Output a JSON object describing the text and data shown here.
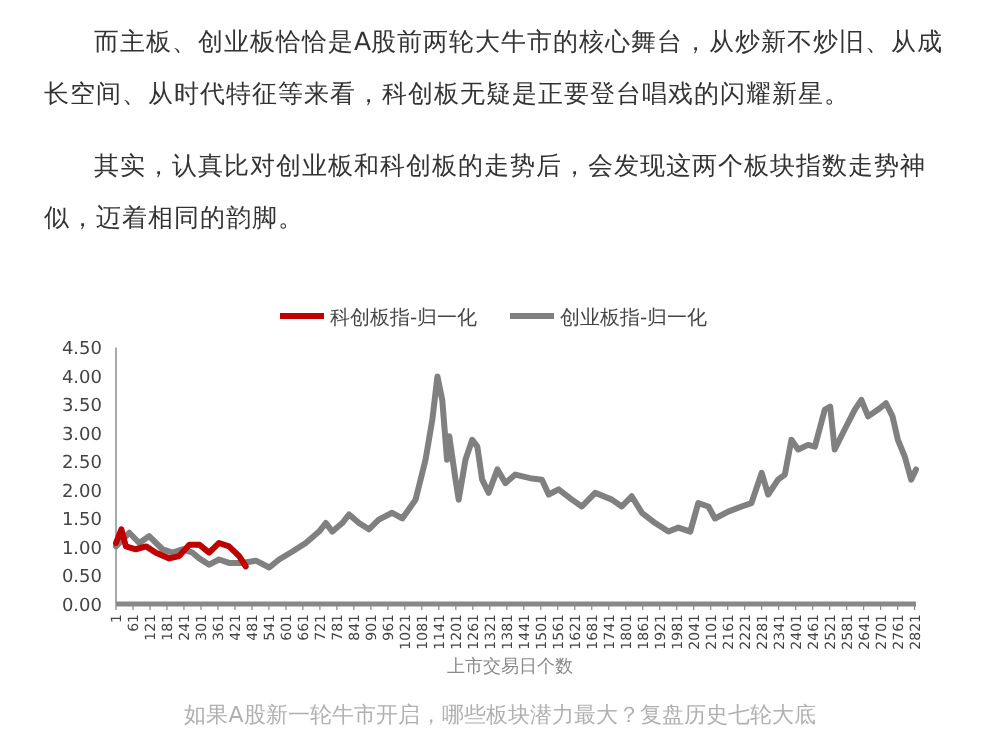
{
  "chart_data": {
    "type": "line",
    "annotations": [
      "而主板、创业板恰恰是A股前两轮大牛市的核心舞台，从炒新不炒旧、从成长空间、从时代特征等来看，科创板无疑是正要登台唱戏的闪耀新星。",
      "其实，认真比对创业板和科创板的走势后，会发现这两个板块指数走势神似，迈着相同的韵脚。",
      "如果A股新一轮牛市开启，哪些板块潜力最大？复盘历史七轮大底"
    ],
    "xlabel": "上市交易日个数",
    "legend": "top",
    "xlim": [
      1,
      2826
    ],
    "xticks": [
      1,
      61,
      121,
      181,
      241,
      301,
      361,
      421,
      481,
      541,
      601,
      661,
      721,
      781,
      841,
      901,
      961,
      1021,
      1081,
      1141,
      1201,
      1261,
      1321,
      1381,
      1441,
      1501,
      1561,
      1621,
      1681,
      1741,
      1801,
      1861,
      1921,
      1981,
      2041,
      2101,
      2161,
      2221,
      2281,
      2341,
      2401,
      2461,
      2521,
      2581,
      2641,
      2701,
      2761,
      2821
    ],
    "ylim": [
      0,
      4.5
    ],
    "yticks": [
      {
        "value": 0,
        "label": "0.00"
      },
      {
        "value": 0.5,
        "label": "0.50"
      },
      {
        "value": 1,
        "label": "1.00"
      },
      {
        "value": 1.5,
        "label": "1.50"
      },
      {
        "value": 2,
        "label": "2.00"
      },
      {
        "value": 2.5,
        "label": "2.50"
      },
      {
        "value": 3,
        "label": "3.00"
      },
      {
        "value": 3.5,
        "label": "3.50"
      },
      {
        "value": 4,
        "label": "4.00"
      },
      {
        "value": 4.5,
        "label": "4.50"
      }
    ],
    "series": [
      {
        "name": "科创板指-归一化",
        "color": "#c00000",
        "x": [
          1,
          20,
          36,
          71,
          107,
          142,
          189,
          224,
          260,
          295,
          330,
          365,
          400,
          436,
          459
        ],
        "values": [
          1.07,
          1.31,
          1.01,
          0.96,
          1.01,
          0.9,
          0.8,
          0.84,
          1.04,
          1.04,
          0.9,
          1.07,
          1.01,
          0.84,
          0.66
        ]
      },
      {
        "name": "创业板指-归一化",
        "color": "#808080",
        "x": [
          1,
          48,
          83,
          118,
          165,
          201,
          236,
          271,
          295,
          330,
          365,
          400,
          447,
          495,
          542,
          577,
          624,
          671,
          718,
          742,
          765,
          800,
          824,
          859,
          894,
          929,
          976,
          1012,
          1035,
          1059,
          1094,
          1118,
          1136,
          1153,
          1170,
          1178,
          1200,
          1211,
          1235,
          1259,
          1277,
          1294,
          1317,
          1348,
          1376,
          1411,
          1470,
          1505,
          1529,
          1564,
          1611,
          1646,
          1693,
          1752,
          1787,
          1822,
          1858,
          1905,
          1952,
          1987,
          2029,
          2057,
          2093,
          2116,
          2163,
          2210,
          2245,
          2281,
          2304,
          2339,
          2363,
          2386,
          2410,
          2445,
          2469,
          2504,
          2523,
          2539,
          2574,
          2610,
          2633,
          2657,
          2692,
          2720,
          2743,
          2762,
          2786,
          2809,
          2826
        ],
        "values": [
          1.01,
          1.25,
          1.07,
          1.19,
          0.96,
          0.9,
          0.96,
          0.9,
          0.8,
          0.69,
          0.78,
          0.72,
          0.72,
          0.76,
          0.64,
          0.78,
          0.92,
          1.07,
          1.27,
          1.42,
          1.27,
          1.42,
          1.57,
          1.42,
          1.31,
          1.48,
          1.6,
          1.5,
          1.66,
          1.83,
          2.53,
          3.23,
          3.99,
          3.58,
          2.53,
          2.94,
          2.18,
          1.83,
          2.53,
          2.88,
          2.76,
          2.18,
          1.95,
          2.36,
          2.12,
          2.27,
          2.2,
          2.18,
          1.92,
          2.01,
          1.83,
          1.71,
          1.95,
          1.83,
          1.71,
          1.89,
          1.6,
          1.42,
          1.27,
          1.34,
          1.27,
          1.77,
          1.71,
          1.5,
          1.62,
          1.71,
          1.77,
          2.3,
          1.92,
          2.18,
          2.27,
          2.88,
          2.71,
          2.79,
          2.76,
          3.41,
          3.46,
          2.71,
          3.06,
          3.41,
          3.58,
          3.29,
          3.41,
          3.52,
          3.29,
          2.88,
          2.59,
          2.18,
          2.36
        ]
      }
    ]
  }
}
